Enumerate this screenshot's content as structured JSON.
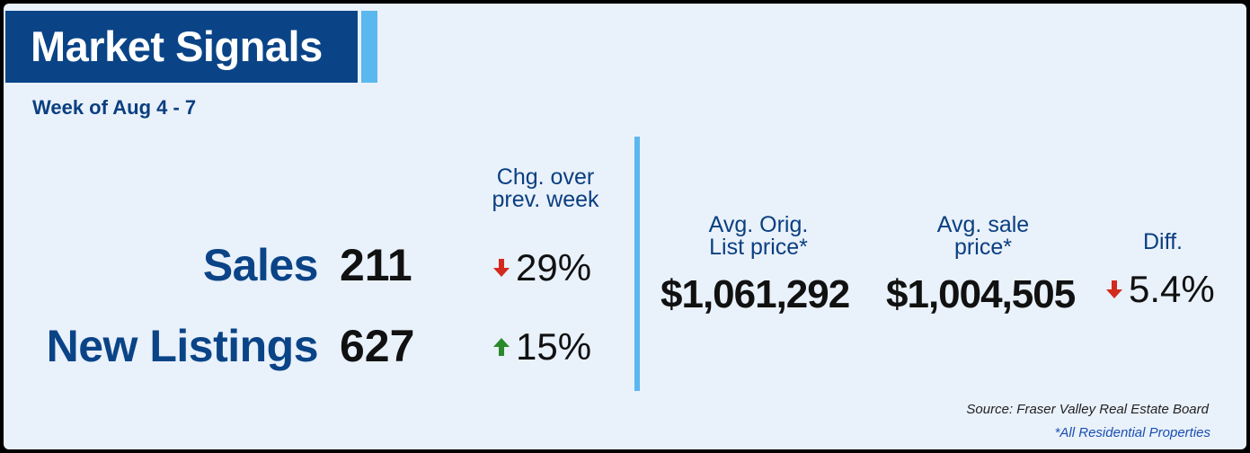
{
  "header": {
    "title": "Market Signals",
    "subtitle": "Week of Aug 4 - 7"
  },
  "left_panel": {
    "change_header": [
      "Chg. over",
      "prev. week"
    ],
    "rows": [
      {
        "label": "Sales",
        "value": "211",
        "direction": "down",
        "change": "29%"
      },
      {
        "label": "New Listings",
        "value": "627",
        "direction": "up",
        "change": "15%"
      }
    ]
  },
  "right_panel": {
    "orig_list_header": [
      "Avg. Orig.",
      "List price*"
    ],
    "sale_header": [
      "Avg. sale",
      "price*"
    ],
    "diff_header": "Diff.",
    "orig_list_price": "$1,061,292",
    "sale_price": "$1,004,505",
    "diff_direction": "down",
    "diff_value": "5.4%"
  },
  "footer": {
    "source": "Source: Fraser Valley Real Estate Board",
    "footnote": "*All Residential Properties"
  },
  "colors": {
    "navy": "#0a4487",
    "accent_blue": "#5bb8ee",
    "background": "#e9f1fb",
    "down_arrow": "#d32a1e",
    "up_arrow": "#2a8a2a"
  },
  "icons": {
    "down": "arrow-down-icon",
    "up": "arrow-up-icon"
  }
}
